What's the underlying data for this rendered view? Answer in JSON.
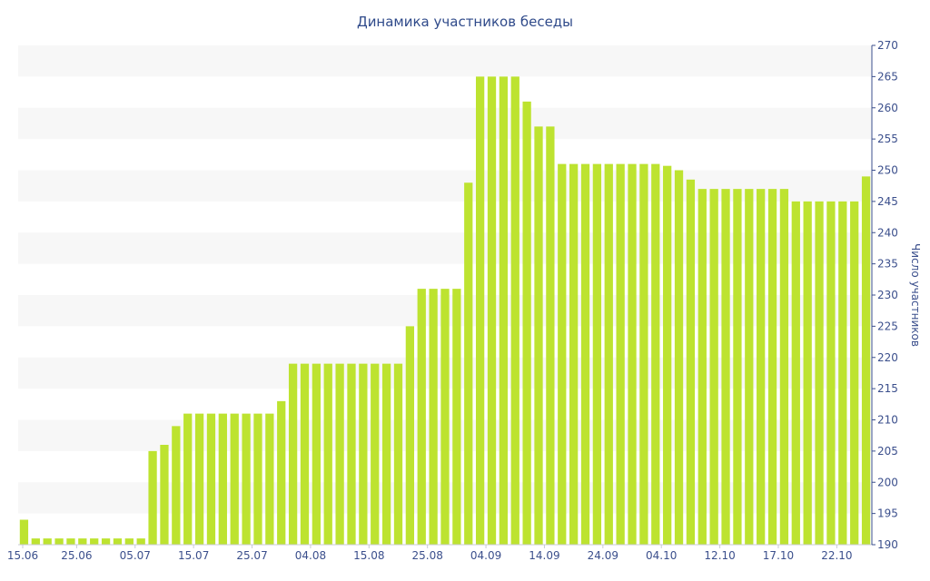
{
  "chart_data": {
    "type": "bar",
    "title": "Динамика участников беседы",
    "ylabel": "Число участников",
    "xlabel": "",
    "ylim": [
      190,
      270
    ],
    "yticks": [
      190,
      195,
      200,
      205,
      210,
      215,
      220,
      225,
      230,
      235,
      240,
      245,
      250,
      255,
      260,
      265,
      270
    ],
    "x_tick_labels": [
      "15.06",
      "25.06",
      "05.07",
      "15.07",
      "25.07",
      "04.08",
      "15.08",
      "25.08",
      "04.09",
      "14.09",
      "24.09",
      "04.10",
      "12.10",
      "17.10",
      "22.10"
    ],
    "x_tick_bar_index": [
      0,
      5,
      10,
      15,
      20,
      25,
      30,
      35,
      40,
      45,
      50,
      55,
      60,
      65,
      70
    ],
    "grid": "alternating horizontal bands",
    "colors": {
      "bar": "#bde330",
      "band": "#f7f7f7",
      "axis": "#3b4f8c",
      "title": "#2f4a8a"
    },
    "values": [
      194,
      191,
      191,
      191,
      191,
      191,
      191,
      191,
      191,
      191,
      191,
      205,
      206,
      209,
      211,
      211,
      211,
      211,
      211,
      211,
      211,
      211,
      213,
      219,
      219,
      219,
      219,
      219,
      219,
      219,
      219,
      219,
      219,
      225,
      231,
      231,
      231,
      231,
      248,
      265,
      265,
      265,
      265,
      261,
      257,
      257,
      251,
      251,
      251,
      251,
      251,
      251,
      251,
      251,
      251,
      250.7,
      250,
      248.5,
      247,
      247,
      247,
      247,
      247,
      247,
      247,
      247,
      245,
      245,
      245,
      245,
      245,
      245,
      249
    ]
  }
}
